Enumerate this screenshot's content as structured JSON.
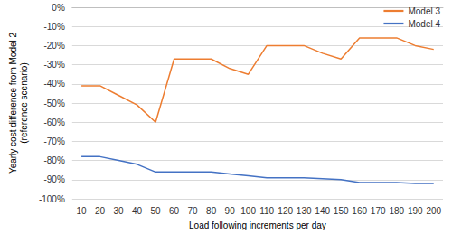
{
  "chart_data": {
    "type": "line",
    "x_label": "Load following increments per day",
    "y_label": "Yearly cost difference from Model 2\n(reference scenario)",
    "categories": [
      10,
      20,
      30,
      40,
      50,
      60,
      70,
      80,
      90,
      100,
      110,
      120,
      130,
      140,
      150,
      160,
      170,
      180,
      190,
      200
    ],
    "series": [
      {
        "name": "Model 3",
        "color": "#ed7d31",
        "values": [
          -41,
          -41,
          -46,
          -51,
          -60,
          -27,
          -27,
          -27,
          -32,
          -35,
          -20,
          -20,
          -20,
          -24,
          -27,
          -16,
          -16,
          -16,
          -20,
          -22
        ]
      },
      {
        "name": "Model 4",
        "color": "#4472c4",
        "values": [
          -78,
          -78,
          -80,
          -82,
          -86,
          -86,
          -86,
          -86,
          -87,
          -88,
          -89,
          -89,
          -89,
          -89.5,
          -90,
          -91.5,
          -91.5,
          -91.5,
          -92,
          -92
        ]
      }
    ],
    "ylim": [
      -100,
      0
    ],
    "yticks": [
      {
        "value": -100,
        "label": "-100%"
      },
      {
        "value": -90,
        "label": "-90%"
      },
      {
        "value": -80,
        "label": "-80%"
      },
      {
        "value": -70,
        "label": "-70%"
      },
      {
        "value": -60,
        "label": "-60%"
      },
      {
        "value": -50,
        "label": "-50%"
      },
      {
        "value": -40,
        "label": "-40%"
      },
      {
        "value": -30,
        "label": "-30%"
      },
      {
        "value": -20,
        "label": "-20%"
      },
      {
        "value": -10,
        "label": "-10%"
      },
      {
        "value": 0,
        "label": "0%"
      }
    ],
    "grid": true,
    "legend": "top-right"
  }
}
